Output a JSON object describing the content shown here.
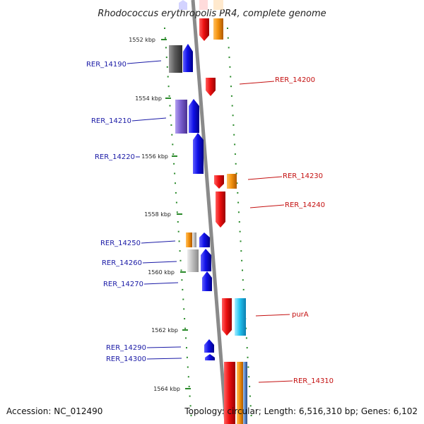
{
  "title": "Rhodococcus erythropolis PR4, complete genome",
  "accession": "Accession: NC_012490",
  "topology": "Topology: circular; Length: 6,516,310 bp; Genes: 6,102",
  "ticks": [
    {
      "label": "1552 kbp"
    },
    {
      "label": "1554 kbp"
    },
    {
      "label": "1556 kbp"
    },
    {
      "label": "1558 kbp"
    },
    {
      "label": "1560 kbp"
    },
    {
      "label": "1562 kbp"
    },
    {
      "label": "1564 kbp"
    }
  ],
  "genes_left": [
    {
      "label": "RER_14190"
    },
    {
      "label": "RER_14210"
    },
    {
      "label": "RER_14220"
    },
    {
      "label": "RER_14250"
    },
    {
      "label": "RER_14260"
    },
    {
      "label": "RER_14270"
    },
    {
      "label": "RER_14290"
    },
    {
      "label": "RER_14300"
    }
  ],
  "genes_right": [
    {
      "label": "RER_14200"
    },
    {
      "label": "RER_14230"
    },
    {
      "label": "RER_14240"
    },
    {
      "label": "purA"
    },
    {
      "label": "RER_14310"
    }
  ],
  "colors": {
    "left_label": "#1a1aa6",
    "right_label": "#c41010",
    "blue_gene": "#1010e0",
    "red_gene": "#ee1111",
    "orange_gene": "#f5940f",
    "cyan_gene": "#22c3f0",
    "gray_gene": "#555555",
    "purple_gene": "#7b5fd0",
    "tick_green": "#2a8a2a"
  }
}
